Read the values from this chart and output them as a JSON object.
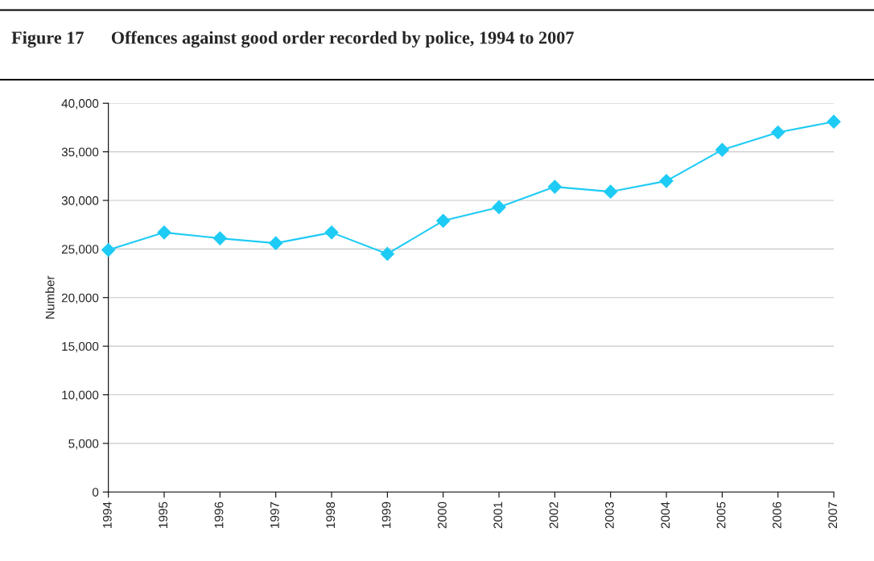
{
  "chart_data": {
    "type": "line",
    "title": "Figure 17      Offences against good order recorded by police, 1994 to 2007",
    "ylabel": "Number",
    "categories": [
      "1994",
      "1995",
      "1996",
      "1997",
      "1998",
      "1999",
      "2000",
      "2001",
      "2002",
      "2003",
      "2004",
      "2005",
      "2006",
      "2007"
    ],
    "series": [
      {
        "color": "#1ecbf5",
        "values": [
          24900,
          26700,
          26100,
          25600,
          26700,
          24500,
          27900,
          29300,
          31400,
          30900,
          32000,
          35200,
          37000,
          38100
        ]
      }
    ],
    "ylim": [
      0,
      40000
    ],
    "yticks": [
      {
        "value": 0,
        "label": "0"
      },
      {
        "value": 5000,
        "label": "5,000"
      },
      {
        "value": 10000,
        "label": "10,000"
      },
      {
        "value": 15000,
        "label": "15,000"
      },
      {
        "value": 20000,
        "label": "20,000"
      },
      {
        "value": 25000,
        "label": "25,000"
      },
      {
        "value": 30000,
        "label": "30,000"
      },
      {
        "value": 35000,
        "label": "35,000"
      },
      {
        "value": 40000,
        "label": "40,000"
      }
    ],
    "grid": "y",
    "marker": "diamond",
    "line_style": "solid"
  }
}
